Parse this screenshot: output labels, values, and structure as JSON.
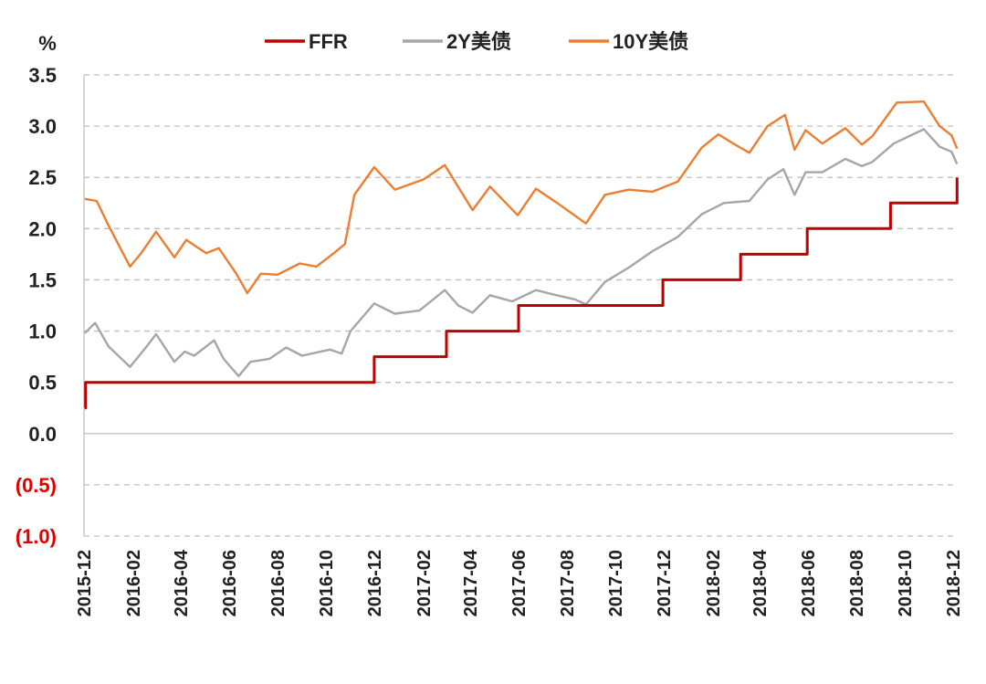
{
  "chart_data": {
    "type": "line",
    "unit_label": "%",
    "ylim": [
      -1.0,
      3.5
    ],
    "y_ticks": [
      {
        "value": 3.5,
        "label": "3.5",
        "color": "#222222"
      },
      {
        "value": 3.0,
        "label": "3.0",
        "color": "#222222"
      },
      {
        "value": 2.5,
        "label": "2.5",
        "color": "#222222"
      },
      {
        "value": 2.0,
        "label": "2.0",
        "color": "#222222"
      },
      {
        "value": 1.5,
        "label": "1.5",
        "color": "#222222"
      },
      {
        "value": 1.0,
        "label": "1.0",
        "color": "#222222"
      },
      {
        "value": 0.5,
        "label": "0.5",
        "color": "#222222"
      },
      {
        "value": 0.0,
        "label": "0.0",
        "color": "#222222"
      },
      {
        "value": -0.5,
        "label": "(0.5)",
        "color": "#e00000"
      },
      {
        "value": -1.0,
        "label": "(1.0)",
        "color": "#e00000"
      }
    ],
    "x_ticks": [
      "2015-12",
      "2016-02",
      "2016-04",
      "2016-06",
      "2016-08",
      "2016-10",
      "2016-12",
      "2017-02",
      "2017-04",
      "2017-06",
      "2017-08",
      "2017-10",
      "2017-12",
      "2018-02",
      "2018-04",
      "2018-06",
      "2018-08",
      "2018-10",
      "2018-12"
    ],
    "grid": "horizontal dashed",
    "legend_position": "top",
    "series": [
      {
        "name": "FFR",
        "color": "#c00000",
        "step": true,
        "points": [
          [
            "2015-12-16",
            0.25
          ],
          [
            "2015-12-17",
            0.5
          ],
          [
            "2016-12-14",
            0.5
          ],
          [
            "2016-12-15",
            0.75
          ],
          [
            "2017-03-15",
            0.75
          ],
          [
            "2017-03-16",
            1.0
          ],
          [
            "2017-06-14",
            1.0
          ],
          [
            "2017-06-15",
            1.25
          ],
          [
            "2017-12-13",
            1.25
          ],
          [
            "2017-12-14",
            1.5
          ],
          [
            "2018-03-21",
            1.5
          ],
          [
            "2018-03-22",
            1.75
          ],
          [
            "2018-06-13",
            1.75
          ],
          [
            "2018-06-14",
            2.0
          ],
          [
            "2018-09-26",
            2.0
          ],
          [
            "2018-09-27",
            2.25
          ],
          [
            "2018-12-19",
            2.25
          ],
          [
            "2018-12-20",
            2.5
          ]
        ]
      },
      {
        "name": "2Y美债",
        "color": "#a6a6a6",
        "step": false,
        "points": [
          [
            "2015-12-16",
            0.98
          ],
          [
            "2015-12-29",
            1.08
          ],
          [
            "2016-01-15",
            0.85
          ],
          [
            "2016-02-11",
            0.65
          ],
          [
            "2016-03-01",
            0.83
          ],
          [
            "2016-03-15",
            0.97
          ],
          [
            "2016-04-07",
            0.7
          ],
          [
            "2016-04-20",
            0.8
          ],
          [
            "2016-05-02",
            0.76
          ],
          [
            "2016-05-27",
            0.91
          ],
          [
            "2016-06-08",
            0.73
          ],
          [
            "2016-06-27",
            0.56
          ],
          [
            "2016-07-12",
            0.7
          ],
          [
            "2016-08-05",
            0.73
          ],
          [
            "2016-08-26",
            0.84
          ],
          [
            "2016-09-15",
            0.76
          ],
          [
            "2016-10-20",
            0.82
          ],
          [
            "2016-11-04",
            0.78
          ],
          [
            "2016-11-15",
            1.0
          ],
          [
            "2016-12-15",
            1.27
          ],
          [
            "2017-01-10",
            1.17
          ],
          [
            "2017-02-10",
            1.2
          ],
          [
            "2017-03-14",
            1.4
          ],
          [
            "2017-03-31",
            1.25
          ],
          [
            "2017-04-18",
            1.18
          ],
          [
            "2017-05-10",
            1.35
          ],
          [
            "2017-06-07",
            1.29
          ],
          [
            "2017-07-07",
            1.4
          ],
          [
            "2017-08-02",
            1.35
          ],
          [
            "2017-08-25",
            1.31
          ],
          [
            "2017-09-08",
            1.26
          ],
          [
            "2017-10-02",
            1.48
          ],
          [
            "2017-11-01",
            1.62
          ],
          [
            "2017-12-01",
            1.78
          ],
          [
            "2018-01-02",
            1.92
          ],
          [
            "2018-02-01",
            2.14
          ],
          [
            "2018-03-01",
            2.25
          ],
          [
            "2018-04-02",
            2.27
          ],
          [
            "2018-04-25",
            2.48
          ],
          [
            "2018-05-15",
            2.58
          ],
          [
            "2018-05-29",
            2.33
          ],
          [
            "2018-06-12",
            2.55
          ],
          [
            "2018-07-03",
            2.55
          ],
          [
            "2018-08-01",
            2.68
          ],
          [
            "2018-08-22",
            2.61
          ],
          [
            "2018-09-04",
            2.65
          ],
          [
            "2018-10-01",
            2.83
          ],
          [
            "2018-11-08",
            2.97
          ],
          [
            "2018-11-28",
            2.8
          ],
          [
            "2018-12-13",
            2.75
          ],
          [
            "2018-12-20",
            2.63
          ]
        ]
      },
      {
        "name": "10Y美债",
        "color": "#ed7d31",
        "step": false,
        "points": [
          [
            "2015-12-16",
            2.29
          ],
          [
            "2015-12-31",
            2.27
          ],
          [
            "2016-01-15",
            2.03
          ],
          [
            "2016-02-11",
            1.63
          ],
          [
            "2016-02-24",
            1.75
          ],
          [
            "2016-03-15",
            1.97
          ],
          [
            "2016-04-07",
            1.72
          ],
          [
            "2016-04-22",
            1.89
          ],
          [
            "2016-05-17",
            1.76
          ],
          [
            "2016-06-02",
            1.81
          ],
          [
            "2016-06-24",
            1.56
          ],
          [
            "2016-07-08",
            1.37
          ],
          [
            "2016-07-25",
            1.56
          ],
          [
            "2016-08-15",
            1.55
          ],
          [
            "2016-09-12",
            1.66
          ],
          [
            "2016-10-03",
            1.63
          ],
          [
            "2016-10-25",
            1.76
          ],
          [
            "2016-11-08",
            1.85
          ],
          [
            "2016-11-20",
            2.33
          ],
          [
            "2016-12-15",
            2.6
          ],
          [
            "2017-01-10",
            2.38
          ],
          [
            "2017-02-15",
            2.48
          ],
          [
            "2017-03-14",
            2.62
          ],
          [
            "2017-04-18",
            2.18
          ],
          [
            "2017-05-10",
            2.41
          ],
          [
            "2017-06-14",
            2.13
          ],
          [
            "2017-07-07",
            2.39
          ],
          [
            "2017-08-01",
            2.26
          ],
          [
            "2017-09-08",
            2.05
          ],
          [
            "2017-10-02",
            2.33
          ],
          [
            "2017-11-01",
            2.38
          ],
          [
            "2017-12-01",
            2.36
          ],
          [
            "2018-01-02",
            2.46
          ],
          [
            "2018-02-01",
            2.79
          ],
          [
            "2018-02-22",
            2.92
          ],
          [
            "2018-03-15",
            2.82
          ],
          [
            "2018-04-02",
            2.74
          ],
          [
            "2018-04-25",
            3.0
          ],
          [
            "2018-05-17",
            3.11
          ],
          [
            "2018-05-29",
            2.77
          ],
          [
            "2018-06-12",
            2.96
          ],
          [
            "2018-07-03",
            2.83
          ],
          [
            "2018-08-01",
            2.98
          ],
          [
            "2018-08-22",
            2.82
          ],
          [
            "2018-09-04",
            2.9
          ],
          [
            "2018-10-05",
            3.23
          ],
          [
            "2018-11-08",
            3.24
          ],
          [
            "2018-11-28",
            3.0
          ],
          [
            "2018-12-13",
            2.91
          ],
          [
            "2018-12-20",
            2.78
          ]
        ]
      }
    ]
  }
}
